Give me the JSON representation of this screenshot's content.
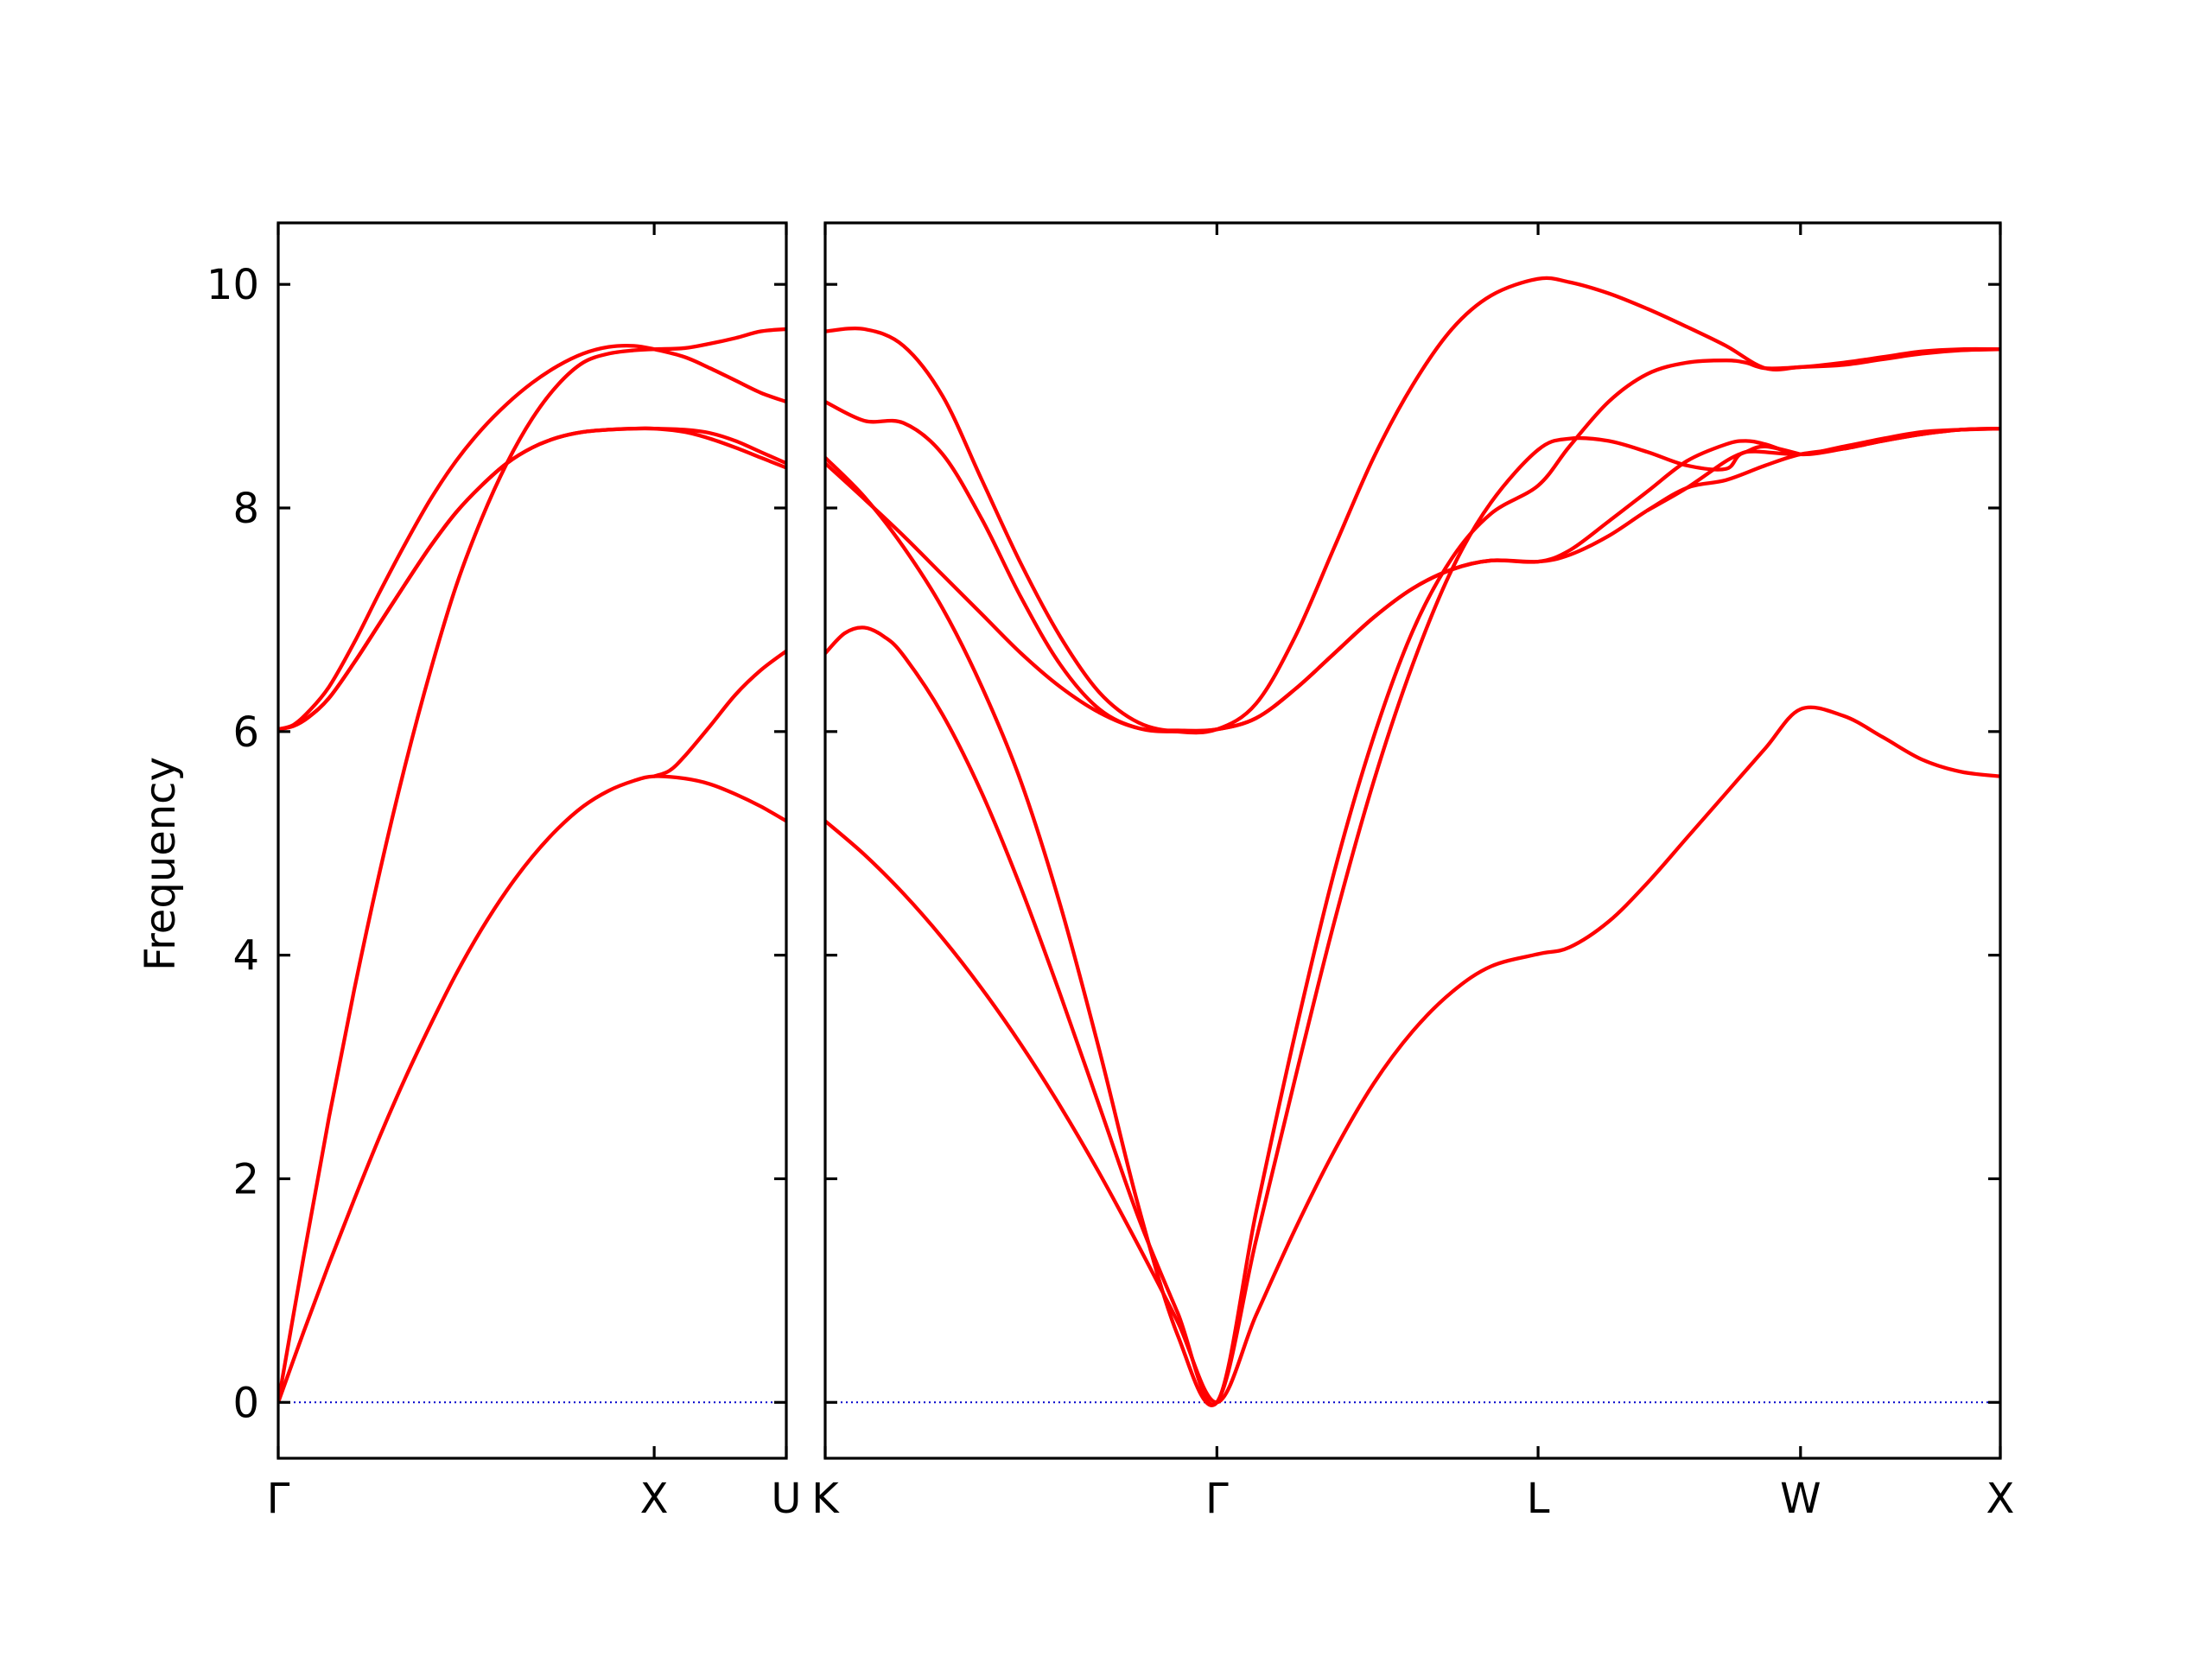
{
  "colors": {
    "band": "#ff0000",
    "zero_line": "#0000cc",
    "axes": "#000000",
    "background": "#ffffff"
  },
  "chart_data": {
    "type": "line",
    "title": "",
    "ylabel": "Frequency",
    "xlabel": "",
    "ylim": [
      -0.5,
      10.55
    ],
    "yticks": [
      0,
      2,
      4,
      6,
      8,
      10
    ],
    "ytick_labels": [
      "0",
      "2",
      "4",
      "6",
      "8",
      "10"
    ],
    "grid": false,
    "legend": "none",
    "zero_line": {
      "y": 0,
      "style": "dotted"
    },
    "panels": [
      {
        "x_range": [
          0,
          1.0
        ],
        "ticks": [
          {
            "x": 0,
            "label": "Γ"
          },
          {
            "x": 0.74,
            "label": "X"
          },
          {
            "x": 1.0,
            "label": "U"
          }
        ],
        "bands": [
          {
            "x": [
              0,
              0.05,
              0.1,
              0.15,
              0.2,
              0.25,
              0.3,
              0.35,
              0.4,
              0.45,
              0.5,
              0.55,
              0.6,
              0.65,
              0.7,
              0.74,
              0.8,
              0.85,
              0.9,
              0.95,
              1.0
            ],
            "y": [
              0,
              0.63,
              1.24,
              1.82,
              2.38,
              2.9,
              3.38,
              3.83,
              4.23,
              4.58,
              4.88,
              5.13,
              5.33,
              5.47,
              5.56,
              5.6,
              5.58,
              5.53,
              5.44,
              5.33,
              5.2
            ]
          },
          {
            "x": [
              0,
              0.05,
              0.1,
              0.15,
              0.2,
              0.25,
              0.3,
              0.35,
              0.4,
              0.45,
              0.5,
              0.55,
              0.6,
              0.65,
              0.7,
              0.74,
              0.8,
              0.85,
              0.9,
              0.95,
              1.0
            ],
            "y": [
              0,
              1.3,
              2.55,
              3.7,
              4.75,
              5.7,
              6.55,
              7.3,
              7.9,
              8.4,
              8.8,
              9.1,
              9.3,
              9.38,
              9.41,
              9.42,
              9.43,
              9.47,
              9.52,
              9.58,
              9.6
            ]
          },
          {
            "x": [
              0,
              0.03,
              0.06,
              0.1,
              0.15,
              0.2,
              0.25,
              0.3,
              0.35,
              0.4,
              0.45,
              0.5,
              0.55,
              0.6,
              0.65,
              0.7,
              0.74,
              0.8,
              0.85,
              0.9,
              0.95,
              1.0
            ],
            "y": [
              6.02,
              6.06,
              6.18,
              6.4,
              6.8,
              7.25,
              7.68,
              8.08,
              8.42,
              8.7,
              8.93,
              9.12,
              9.27,
              9.38,
              9.44,
              9.45,
              9.42,
              9.35,
              9.25,
              9.14,
              9.03,
              8.95
            ]
          },
          {
            "x": [
              0,
              0.03,
              0.06,
              0.1,
              0.15,
              0.2,
              0.25,
              0.3,
              0.35,
              0.4,
              0.45,
              0.5,
              0.55,
              0.6,
              0.65,
              0.7,
              0.74,
              0.8,
              0.85,
              0.9,
              0.95,
              1.0
            ],
            "y": [
              6.02,
              6.05,
              6.13,
              6.3,
              6.62,
              6.97,
              7.32,
              7.66,
              7.96,
              8.2,
              8.4,
              8.54,
              8.63,
              8.68,
              8.7,
              8.71,
              8.71,
              8.7,
              8.67,
              8.6,
              8.5,
              8.4
            ]
          },
          {
            "x": [
              0,
              0.03,
              0.06,
              0.1,
              0.15,
              0.2,
              0.25,
              0.3,
              0.35,
              0.4,
              0.45,
              0.5,
              0.55,
              0.6,
              0.65,
              0.7,
              0.74,
              0.8,
              0.85,
              0.9,
              0.95,
              1.0
            ],
            "y": [
              6.02,
              6.05,
              6.13,
              6.3,
              6.62,
              6.97,
              7.32,
              7.66,
              7.96,
              8.2,
              8.4,
              8.54,
              8.63,
              8.68,
              8.7,
              8.71,
              8.71,
              8.68,
              8.62,
              8.54,
              8.45,
              8.36
            ]
          },
          {
            "x": [
              0.74,
              0.77,
              0.8,
              0.85,
              0.9,
              0.95,
              1.0
            ],
            "y": [
              5.6,
              5.65,
              5.78,
              6.05,
              6.33,
              6.55,
              6.72
            ]
          }
        ]
      },
      {
        "x_range": [
          0,
          3.0
        ],
        "ticks": [
          {
            "x": 0,
            "label": "K"
          },
          {
            "x": 1.0,
            "label": "Γ"
          },
          {
            "x": 1.82,
            "label": "L"
          },
          {
            "x": 2.49,
            "label": "W"
          },
          {
            "x": 3.0,
            "label": "X"
          }
        ],
        "bands": [
          {
            "x": [
              0,
              0.1,
              0.2,
              0.3,
              0.4,
              0.5,
              0.6,
              0.7,
              0.8,
              0.9,
              1.0,
              1.1,
              1.2,
              1.3,
              1.4,
              1.5,
              1.6,
              1.7,
              1.82,
              1.9,
              2.0,
              2.1,
              2.2,
              2.3,
              2.4,
              2.49,
              2.6,
              2.7,
              2.8,
              2.9,
              3.0
            ],
            "y": [
              5.2,
              4.9,
              4.55,
              4.15,
              3.7,
              3.2,
              2.65,
              2.05,
              1.4,
              0.72,
              0,
              0.78,
              1.55,
              2.25,
              2.85,
              3.32,
              3.67,
              3.9,
              4.01,
              4.07,
              4.3,
              4.65,
              5.05,
              5.45,
              5.85,
              6.2,
              6.14,
              5.95,
              5.75,
              5.64,
              5.6
            ]
          },
          {
            "x": [
              0,
              0.05,
              0.1,
              0.15,
              0.2,
              0.3,
              0.4,
              0.5,
              0.6,
              0.7,
              0.8,
              0.9,
              1.0,
              1.1,
              1.2,
              1.3,
              1.4,
              1.5,
              1.6,
              1.7,
              1.82,
              1.9,
              2.0,
              2.1,
              2.2,
              2.3,
              2.35,
              2.4,
              2.49,
              2.6,
              2.7,
              2.8,
              2.9,
              3.0
            ],
            "y": [
              6.7,
              6.88,
              6.93,
              6.85,
              6.68,
              6.15,
              5.45,
              4.6,
              3.65,
              2.65,
              1.65,
              0.8,
              0,
              1.7,
              3.3,
              4.75,
              5.95,
              6.9,
              7.55,
              7.95,
              8.2,
              8.55,
              8.95,
              9.2,
              9.3,
              9.32,
              9.3,
              9.25,
              9.26,
              9.3,
              9.35,
              9.4,
              9.42,
              9.42
            ]
          },
          {
            "x": [
              0,
              0.1,
              0.2,
              0.3,
              0.4,
              0.5,
              0.6,
              0.7,
              0.8,
              0.9,
              1.0,
              1.1,
              1.2,
              1.3,
              1.4,
              1.5,
              1.6,
              1.7,
              1.82,
              1.9,
              2.0,
              2.1,
              2.2,
              2.3,
              2.35,
              2.49,
              2.6,
              2.7,
              2.8,
              2.9,
              3.0
            ],
            "y": [
              8.45,
              8.1,
              7.65,
              7.1,
              6.4,
              5.55,
              4.45,
              3.15,
              1.75,
              0.6,
              0,
              1.45,
              2.9,
              4.3,
              5.55,
              6.6,
              7.45,
              8.05,
              8.52,
              8.62,
              8.6,
              8.5,
              8.38,
              8.35,
              8.5,
              8.48,
              8.55,
              8.62,
              8.68,
              8.7,
              8.71
            ]
          },
          {
            "x": [
              0,
              0.1,
              0.2,
              0.3,
              0.4,
              0.5,
              0.6,
              0.7,
              0.8,
              0.9,
              1.0,
              1.1,
              1.2,
              1.3,
              1.4,
              1.5,
              1.6,
              1.7,
              1.82,
              1.9,
              2.0,
              2.1,
              2.2,
              2.3,
              2.4,
              2.49,
              2.6,
              2.7,
              2.8,
              2.9,
              3.0
            ],
            "y": [
              8.4,
              8.08,
              7.75,
              7.4,
              7.05,
              6.7,
              6.4,
              6.17,
              6.03,
              6.01,
              6.02,
              6.12,
              6.38,
              6.7,
              7.02,
              7.28,
              7.45,
              7.53,
              7.52,
              7.58,
              7.75,
              7.98,
              8.18,
              8.25,
              8.38,
              8.48,
              8.53,
              8.6,
              8.66,
              8.7,
              8.71
            ]
          },
          {
            "x": [
              0,
              0.1,
              0.2,
              0.3,
              0.4,
              0.5,
              0.6,
              0.7,
              0.8,
              0.9,
              1.0,
              1.1,
              1.2,
              1.3,
              1.4,
              1.5,
              1.6,
              1.7,
              1.82,
              1.9,
              2.0,
              2.1,
              2.2,
              2.3,
              2.35,
              2.4,
              2.49,
              2.6,
              2.7,
              2.8,
              2.9,
              3.0
            ],
            "y": [
              8.95,
              8.78,
              8.76,
              8.48,
              7.9,
              7.2,
              6.6,
              6.2,
              6.03,
              6.0,
              6.02,
              6.12,
              6.38,
              6.7,
              7.02,
              7.28,
              7.45,
              7.53,
              7.52,
              7.62,
              7.88,
              8.15,
              8.42,
              8.57,
              8.6,
              8.57,
              8.48,
              8.53,
              8.6,
              8.66,
              8.7,
              8.71
            ]
          },
          {
            "x": [
              0,
              0.1,
              0.2,
              0.3,
              0.4,
              0.5,
              0.6,
              0.7,
              0.8,
              0.9,
              1.0,
              1.1,
              1.2,
              1.3,
              1.4,
              1.5,
              1.6,
              1.7,
              1.82,
              1.9,
              2.0,
              2.1,
              2.2,
              2.3,
              2.4,
              2.49,
              2.6,
              2.7,
              2.8,
              2.9,
              3.0
            ],
            "y": [
              9.58,
              9.6,
              9.45,
              9.0,
              8.25,
              7.5,
              6.85,
              6.35,
              6.08,
              6.0,
              6.02,
              6.25,
              6.85,
              7.65,
              8.45,
              9.1,
              9.6,
              9.9,
              10.05,
              10.02,
              9.92,
              9.78,
              9.62,
              9.45,
              9.25,
              9.26,
              9.28,
              9.33,
              9.38,
              9.41,
              9.42
            ]
          },
          {
            "x": [
              2.1,
              2.2,
              2.3,
              2.35,
              2.4,
              2.49
            ],
            "y": [
              7.98,
              8.18,
              8.42,
              8.5,
              8.55,
              8.48
            ]
          }
        ]
      }
    ]
  }
}
